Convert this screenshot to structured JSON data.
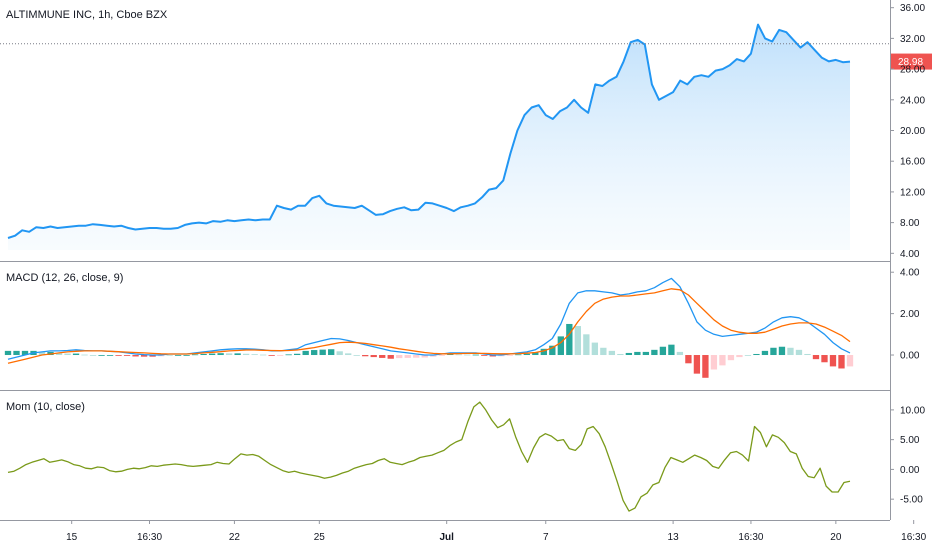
{
  "titles": {
    "main": "ALTIMMUNE INC, 1h, Cboe BZX",
    "macd": "MACD (12, 26, close, 9)",
    "mom": "Mom (10, close)"
  },
  "last_price": "28.98",
  "colors": {
    "price_line": "#2196f3",
    "price_fill_top": "#bbdefb",
    "macd_line": "#2196f3",
    "signal_line": "#ff6d00",
    "hist_pos_strong": "#26a69a",
    "hist_pos_weak": "#b2dfdb",
    "hist_neg_strong": "#ef5350",
    "hist_neg_weak": "#ffcdd2",
    "mom_line": "#7a9a1a",
    "price_tag": "#ef5350"
  },
  "chart_data": [
    {
      "type": "area",
      "title": "ALTIMMUNE INC, 1h, Cboe BZX",
      "ylim": [
        3,
        37
      ],
      "yticks": [
        "36.00",
        "32.00",
        "28.00",
        "24.00",
        "20.00",
        "16.00",
        "12.00",
        "8.00",
        "4.00"
      ],
      "ytick_values": [
        36,
        32,
        28,
        24,
        20,
        16,
        12,
        8,
        4
      ],
      "x_ticks": [
        "15",
        "16:30",
        "22",
        "25",
        "Jul",
        "7",
        "13",
        "16:30",
        "20",
        "16:30"
      ],
      "x_tick_index": [
        9,
        20,
        32,
        44,
        62,
        76,
        94,
        105,
        117,
        128
      ],
      "reference_line": 31.3,
      "last_value": 28.98,
      "values": [
        6.0,
        6.3,
        7.0,
        6.8,
        7.4,
        7.3,
        7.5,
        7.3,
        7.4,
        7.5,
        7.6,
        7.6,
        7.8,
        7.7,
        7.6,
        7.5,
        7.6,
        7.3,
        7.1,
        7.2,
        7.3,
        7.3,
        7.2,
        7.2,
        7.3,
        7.7,
        7.9,
        8.0,
        7.9,
        8.2,
        8.1,
        8.3,
        8.2,
        8.3,
        8.4,
        8.3,
        8.4,
        8.4,
        10.2,
        9.9,
        9.7,
        10.2,
        10.2,
        11.2,
        11.5,
        10.5,
        10.2,
        10.1,
        10.0,
        9.9,
        10.2,
        9.6,
        9.0,
        9.1,
        9.5,
        9.8,
        10.0,
        9.6,
        9.7,
        10.6,
        10.5,
        10.2,
        9.9,
        9.5,
        10.0,
        10.2,
        10.5,
        11.3,
        12.3,
        12.5,
        13.5,
        17.0,
        20.0,
        22.0,
        23.0,
        23.3,
        22.0,
        21.5,
        22.5,
        23.0,
        24.0,
        23.0,
        22.3,
        26.0,
        25.8,
        26.5,
        27.0,
        29.0,
        31.5,
        31.8,
        31.2,
        26.0,
        24.0,
        24.5,
        25.0,
        26.5,
        26.0,
        27.0,
        27.2,
        27.0,
        27.8,
        28.0,
        28.5,
        29.3,
        29.0,
        30.0,
        33.8,
        32.0,
        31.6,
        33.1,
        32.8,
        31.8,
        30.8,
        31.5,
        30.5,
        29.5,
        29.0,
        29.2,
        28.9,
        28.98
      ]
    },
    {
      "type": "line",
      "title": "MACD (12, 26, close, 9)",
      "ylim": [
        -1.4,
        4.3
      ],
      "yticks": [
        "4.00",
        "2.00",
        "0.00"
      ],
      "ytick_values": [
        4,
        2,
        0
      ],
      "series": [
        {
          "values": [
            -0.2,
            -0.1,
            0.0,
            0.1,
            0.15,
            0.2,
            0.2,
            0.22,
            0.25,
            0.22,
            0.2,
            0.2,
            0.18,
            0.15,
            0.1,
            0.05,
            0.02,
            0.0,
            0.0,
            0.05,
            0.05,
            0.05,
            0.1,
            0.15,
            0.2,
            0.25,
            0.28,
            0.3,
            0.3,
            0.28,
            0.25,
            0.2,
            0.2,
            0.25,
            0.3,
            0.5,
            0.6,
            0.7,
            0.8,
            0.78,
            0.7,
            0.6,
            0.5,
            0.4,
            0.3,
            0.2,
            0.15,
            0.1,
            0.05,
            0.0,
            0.0,
            0.05,
            0.1,
            0.1,
            0.1,
            0.1,
            0.05,
            0.0,
            0.0,
            0.05,
            0.1,
            0.15,
            0.25,
            0.5,
            0.8,
            1.5,
            2.5,
            3.0,
            3.1,
            3.1,
            3.05,
            3.0,
            2.9,
            2.95,
            3.05,
            3.1,
            3.25,
            3.5,
            3.7,
            3.3,
            2.5,
            1.6,
            1.2,
            1.0,
            0.9,
            0.95,
            1.0,
            1.05,
            1.1,
            1.3,
            1.6,
            1.8,
            1.85,
            1.8,
            1.6,
            1.3,
            1.0,
            0.6,
            0.3,
            0.1
          ]
        },
        {
          "values": [
            -0.4,
            -0.3,
            -0.2,
            -0.1,
            0.0,
            0.05,
            0.1,
            0.15,
            0.18,
            0.2,
            0.2,
            0.2,
            0.18,
            0.16,
            0.14,
            0.12,
            0.1,
            0.08,
            0.06,
            0.05,
            0.05,
            0.05,
            0.07,
            0.1,
            0.13,
            0.16,
            0.2,
            0.22,
            0.24,
            0.24,
            0.23,
            0.22,
            0.21,
            0.22,
            0.24,
            0.3,
            0.36,
            0.44,
            0.52,
            0.6,
            0.62,
            0.6,
            0.56,
            0.5,
            0.44,
            0.38,
            0.3,
            0.24,
            0.18,
            0.12,
            0.08,
            0.06,
            0.06,
            0.07,
            0.08,
            0.08,
            0.08,
            0.07,
            0.06,
            0.06,
            0.07,
            0.09,
            0.12,
            0.2,
            0.35,
            0.6,
            1.0,
            1.6,
            2.1,
            2.5,
            2.7,
            2.8,
            2.85,
            2.85,
            2.9,
            2.95,
            3.0,
            3.1,
            3.2,
            3.15,
            2.9,
            2.5,
            2.1,
            1.7,
            1.4,
            1.2,
            1.1,
            1.05,
            1.05,
            1.1,
            1.25,
            1.4,
            1.5,
            1.55,
            1.55,
            1.5,
            1.35,
            1.15,
            0.95,
            0.65
          ]
        }
      ],
      "histogram": [
        0.2,
        0.2,
        0.2,
        0.2,
        0.15,
        0.15,
        0.1,
        0.07,
        0.07,
        0.02,
        0.0,
        0.0,
        0.0,
        -0.01,
        -0.04,
        -0.07,
        -0.08,
        -0.08,
        -0.06,
        0.0,
        0.0,
        0.0,
        0.03,
        0.05,
        0.07,
        0.09,
        0.08,
        0.08,
        0.06,
        0.04,
        0.02,
        -0.02,
        -0.01,
        0.03,
        0.06,
        0.2,
        0.24,
        0.26,
        0.28,
        0.18,
        0.08,
        0.0,
        -0.06,
        -0.1,
        -0.14,
        -0.18,
        -0.15,
        -0.14,
        -0.13,
        -0.12,
        -0.08,
        -0.01,
        0.04,
        0.03,
        0.02,
        0.02,
        -0.03,
        -0.07,
        -0.06,
        -0.01,
        0.03,
        0.06,
        0.13,
        0.3,
        0.45,
        0.9,
        1.5,
        1.4,
        1.0,
        0.6,
        0.35,
        0.2,
        0.05,
        0.1,
        0.15,
        0.15,
        0.25,
        0.4,
        0.5,
        0.15,
        -0.4,
        -0.9,
        -1.1,
        -0.7,
        -0.5,
        -0.25,
        -0.1,
        0.0,
        0.05,
        0.2,
        0.35,
        0.4,
        0.35,
        0.25,
        0.05,
        -0.2,
        -0.35,
        -0.55,
        -0.65,
        -0.55
      ]
    },
    {
      "type": "line",
      "title": "Mom (10, close)",
      "ylim": [
        -8.5,
        12.5
      ],
      "yticks": [
        "10.00",
        "5.00",
        "0.00",
        "-5.00"
      ],
      "ytick_values": [
        10,
        5,
        0,
        -5
      ],
      "values": [
        -0.5,
        -0.3,
        0.2,
        0.8,
        1.2,
        1.5,
        1.8,
        1.2,
        1.4,
        1.6,
        1.3,
        0.8,
        0.6,
        0.2,
        0.1,
        0.4,
        0.3,
        -0.2,
        -0.4,
        -0.3,
        0.0,
        0.2,
        0.1,
        0.3,
        0.6,
        0.5,
        0.7,
        0.8,
        0.9,
        0.8,
        0.6,
        0.5,
        0.6,
        0.7,
        0.8,
        1.2,
        1.0,
        0.9,
        1.8,
        2.6,
        2.4,
        2.5,
        2.2,
        1.5,
        0.8,
        0.3,
        -0.2,
        -0.5,
        -0.3,
        -0.6,
        -0.8,
        -1.0,
        -1.2,
        -1.5,
        -1.3,
        -1.0,
        -0.6,
        -0.3,
        0.2,
        0.5,
        0.8,
        1.0,
        1.5,
        1.8,
        1.2,
        1.0,
        0.8,
        1.2,
        1.5,
        2.0,
        2.2,
        2.4,
        2.8,
        3.2,
        4.0,
        4.6,
        5.0,
        8.0,
        10.5,
        11.3,
        10.0,
        8.3,
        7.0,
        7.5,
        8.5,
        5.5,
        3.0,
        1.2,
        3.6,
        5.4,
        6.0,
        5.6,
        4.8,
        5.0,
        3.5,
        3.2,
        4.2,
        6.8,
        7.2,
        6.0,
        3.8,
        1.0,
        -2.0,
        -5.2,
        -7.0,
        -6.5,
        -4.6,
        -4.0,
        -2.6,
        -2.2,
        0.3,
        2.0,
        1.6,
        1.2,
        1.8,
        2.4,
        2.0,
        1.5,
        0.5,
        0.2,
        1.6,
        2.8,
        3.0,
        2.4,
        1.4,
        7.2,
        6.2,
        3.8,
        5.8,
        5.4,
        4.5,
        3.0,
        2.6,
        0.2,
        -1.2,
        -1.4,
        0.2,
        -2.8,
        -3.8,
        -3.8,
        -2.2,
        -2.0
      ]
    }
  ]
}
